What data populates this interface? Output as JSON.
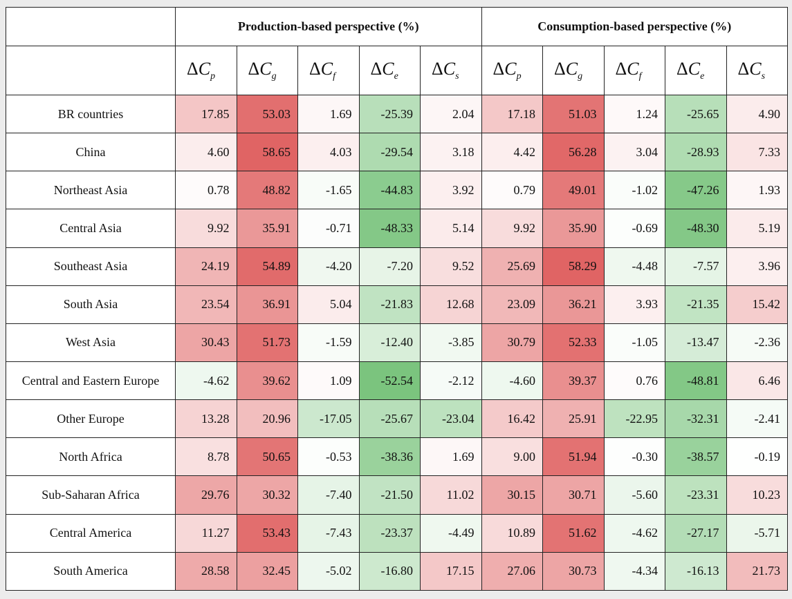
{
  "header": {
    "production_label": "Production-based perspective (%)",
    "consumption_label": "Consumption-based perspective (%)",
    "symbols": [
      {
        "delta": "Δ",
        "letter": "C",
        "sub": "p"
      },
      {
        "delta": "Δ",
        "letter": "C",
        "sub": "g"
      },
      {
        "delta": "Δ",
        "letter": "C",
        "sub": "f"
      },
      {
        "delta": "Δ",
        "letter": "C",
        "sub": "e"
      },
      {
        "delta": "Δ",
        "letter": "C",
        "sub": "s"
      }
    ]
  },
  "rows": [
    {
      "region": "BR countries",
      "production": [
        "17.85",
        "53.03",
        "1.69",
        "-25.39",
        "2.04"
      ],
      "consumption": [
        "17.18",
        "51.03",
        "1.24",
        "-25.65",
        "4.90"
      ]
    },
    {
      "region": "China",
      "production": [
        "4.60",
        "58.65",
        "4.03",
        "-29.54",
        "3.18"
      ],
      "consumption": [
        "4.42",
        "56.28",
        "3.04",
        "-28.93",
        "7.33"
      ]
    },
    {
      "region": "Northeast Asia",
      "production": [
        "0.78",
        "48.82",
        "-1.65",
        "-44.83",
        "3.92"
      ],
      "consumption": [
        "0.79",
        "49.01",
        "-1.02",
        "-47.26",
        "1.93"
      ]
    },
    {
      "region": "Central Asia",
      "production": [
        "9.92",
        "35.91",
        "-0.71",
        "-48.33",
        "5.14"
      ],
      "consumption": [
        "9.92",
        "35.90",
        "-0.69",
        "-48.30",
        "5.19"
      ]
    },
    {
      "region": "Southeast Asia",
      "production": [
        "24.19",
        "54.89",
        "-4.20",
        "-7.20",
        "9.52"
      ],
      "consumption": [
        "25.69",
        "58.29",
        "-4.48",
        "-7.57",
        "3.96"
      ]
    },
    {
      "region": "South Asia",
      "production": [
        "23.54",
        "36.91",
        "5.04",
        "-21.83",
        "12.68"
      ],
      "consumption": [
        "23.09",
        "36.21",
        "3.93",
        "-21.35",
        "15.42"
      ]
    },
    {
      "region": "West Asia",
      "production": [
        "30.43",
        "51.73",
        "-1.59",
        "-12.40",
        "-3.85"
      ],
      "consumption": [
        "30.79",
        "52.33",
        "-1.05",
        "-13.47",
        "-2.36"
      ]
    },
    {
      "region": "Central and Eastern Europe",
      "production": [
        "-4.62",
        "39.62",
        "1.09",
        "-52.54",
        "-2.12"
      ],
      "consumption": [
        "-4.60",
        "39.37",
        "0.76",
        "-48.81",
        "6.46"
      ]
    },
    {
      "region": "Other Europe",
      "production": [
        "13.28",
        "20.96",
        "-17.05",
        "-25.67",
        "-23.04"
      ],
      "consumption": [
        "16.42",
        "25.91",
        "-22.95",
        "-32.31",
        "-2.41"
      ]
    },
    {
      "region": "North Africa",
      "production": [
        "8.78",
        "50.65",
        "-0.53",
        "-38.36",
        "1.69"
      ],
      "consumption": [
        "9.00",
        "51.94",
        "-0.30",
        "-38.57",
        "-0.19"
      ]
    },
    {
      "region": "Sub-Saharan Africa",
      "production": [
        "29.76",
        "30.32",
        "-7.40",
        "-21.50",
        "11.02"
      ],
      "consumption": [
        "30.15",
        "30.71",
        "-5.60",
        "-23.31",
        "10.23"
      ]
    },
    {
      "region": "Central America",
      "production": [
        "11.27",
        "53.43",
        "-7.43",
        "-23.37",
        "-4.49"
      ],
      "consumption": [
        "10.89",
        "51.62",
        "-4.62",
        "-27.17",
        "-5.71"
      ]
    },
    {
      "region": "South America",
      "production": [
        "28.58",
        "32.45",
        "-5.02",
        "-16.80",
        "17.15"
      ],
      "consumption": [
        "27.06",
        "30.73",
        "-4.34",
        "-16.13",
        "21.73"
      ]
    }
  ],
  "colors": {
    "positive_max": "#e06464",
    "negative_max": "#6fbf73",
    "neutral": "#ffffff",
    "border": "#222222",
    "page_background": "#ececec"
  }
}
